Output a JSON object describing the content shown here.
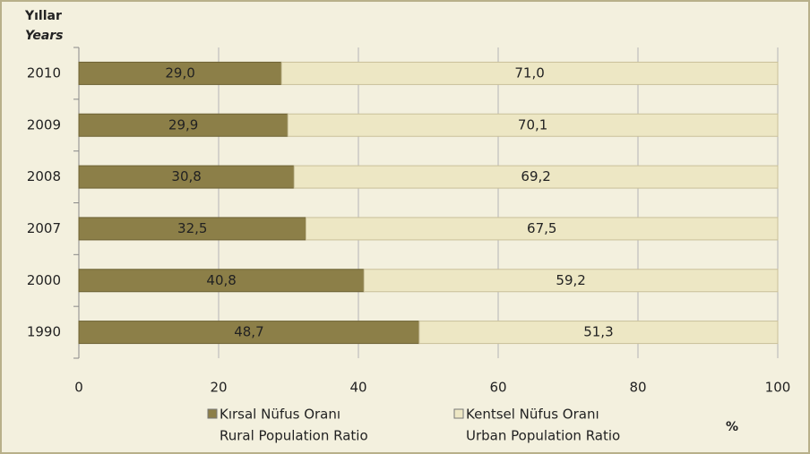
{
  "chart_data": {
    "type": "stacked-bar-horizontal",
    "y_label": "Yıllar",
    "y_label_en": "Years",
    "x_unit": "%",
    "categories": [
      "2010",
      "2009",
      "2008",
      "2007",
      "2000",
      "1990"
    ],
    "series": [
      {
        "name": "Kırsal Nüfus Oranı",
        "name_en": "Rural Population Ratio",
        "color": "#8c7f48",
        "values": [
          29.0,
          29.9,
          30.8,
          32.5,
          40.8,
          48.7
        ],
        "value_labels": [
          "29,0",
          "29,9",
          "30,8",
          "32,5",
          "40,8",
          "48,7"
        ]
      },
      {
        "name": "Kentsel Nüfus Oranı",
        "name_en": "Urban Population Ratio",
        "color": "#ede7c4",
        "values": [
          71.0,
          70.1,
          69.2,
          67.5,
          59.2,
          51.3
        ],
        "value_labels": [
          "71,0",
          "70,1",
          "69,2",
          "67,5",
          "59,2",
          "51,3"
        ]
      }
    ],
    "xlim": [
      0,
      100
    ],
    "xticks": [
      0,
      20,
      40,
      60,
      80,
      100
    ],
    "grid": true
  }
}
